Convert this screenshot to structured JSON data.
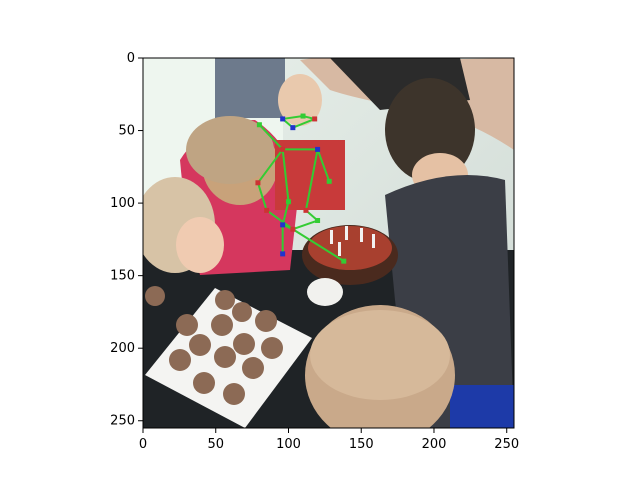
{
  "figure": {
    "x_axis": {
      "range": [
        0,
        255
      ],
      "ticks": [
        "0",
        "50",
        "100",
        "150",
        "200",
        "250"
      ]
    },
    "y_axis": {
      "range": [
        0,
        255
      ],
      "inverted": true,
      "ticks": [
        "0",
        "50",
        "100",
        "150",
        "200",
        "250"
      ]
    },
    "image_description_tag": "photo-of-children-around-birthday-cake",
    "overlay": {
      "line_color": "#33cc33",
      "marker_colors": [
        "#33cc33",
        "#cc3333",
        "#2233cc"
      ],
      "keypoints": [
        {
          "x": 80,
          "y": 46
        },
        {
          "x": 96,
          "y": 63
        },
        {
          "x": 120,
          "y": 63
        },
        {
          "x": 128,
          "y": 85
        },
        {
          "x": 79,
          "y": 86
        },
        {
          "x": 96,
          "y": 42
        },
        {
          "x": 110,
          "y": 40
        },
        {
          "x": 118,
          "y": 42
        },
        {
          "x": 103,
          "y": 48
        },
        {
          "x": 100,
          "y": 99
        },
        {
          "x": 112,
          "y": 105
        },
        {
          "x": 96,
          "y": 115
        },
        {
          "x": 120,
          "y": 112
        },
        {
          "x": 103,
          "y": 118
        },
        {
          "x": 96,
          "y": 135
        },
        {
          "x": 138,
          "y": 140
        },
        {
          "x": 85,
          "y": 105
        }
      ],
      "edges": [
        [
          0,
          1
        ],
        [
          1,
          2
        ],
        [
          2,
          3
        ],
        [
          1,
          4
        ],
        [
          5,
          6
        ],
        [
          6,
          7
        ],
        [
          5,
          8
        ],
        [
          7,
          8
        ],
        [
          1,
          9
        ],
        [
          2,
          10
        ],
        [
          9,
          11
        ],
        [
          10,
          12
        ],
        [
          11,
          13
        ],
        [
          12,
          13
        ],
        [
          13,
          15
        ],
        [
          11,
          14
        ],
        [
          4,
          16
        ],
        [
          16,
          13
        ]
      ]
    }
  }
}
